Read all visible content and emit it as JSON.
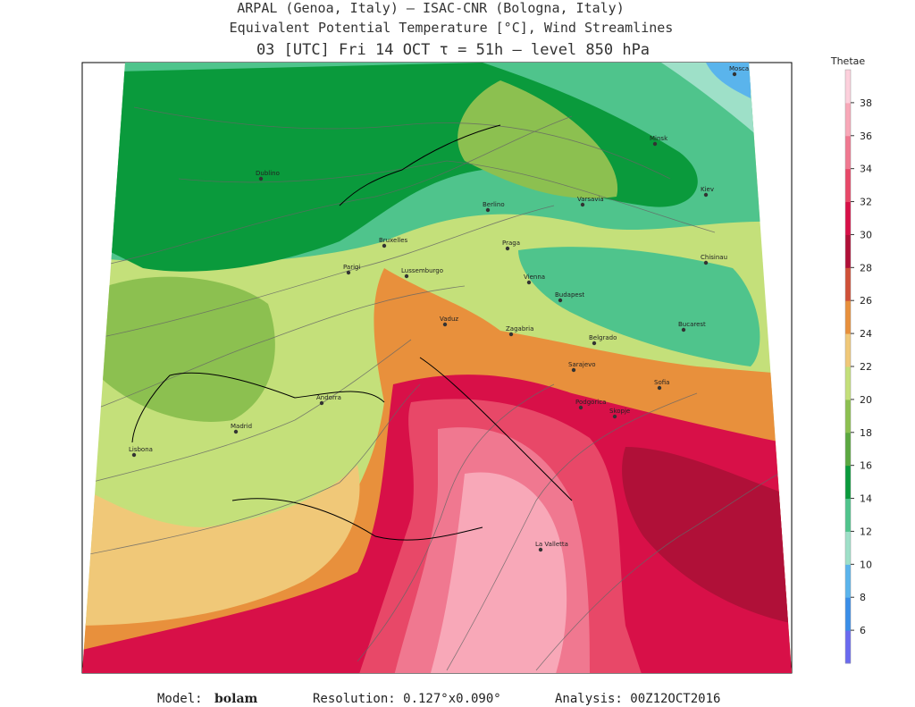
{
  "header": {
    "line1": "ARPAL (Genoa, Italy)  –  ISAC-CNR (Bologna, Italy)",
    "line2": "Equivalent Potential Temperature [°C], Wind Streamlines",
    "line3": "03 [UTC] Fri 14 OCT  τ = 51h  –  level 850 hPa"
  },
  "colorbar": {
    "title": "Thetae",
    "range": [
      4,
      40
    ],
    "ticks": [
      6,
      8,
      10,
      12,
      14,
      16,
      18,
      20,
      22,
      24,
      26,
      28,
      30,
      32,
      34,
      36,
      38
    ],
    "colors": [
      "#6a6af0",
      "#3a8ee8",
      "#5ab4ec",
      "#9ee0c8",
      "#4fc48c",
      "#0a9a3c",
      "#5aa840",
      "#8cc050",
      "#c4e07a",
      "#f0c878",
      "#e8903c",
      "#d05038",
      "#b01038",
      "#d81048",
      "#e84868",
      "#f07890",
      "#f8a8b8",
      "#fcd0dc"
    ]
  },
  "cities": [
    "Mosca",
    "Minsk",
    "Dublino",
    "Berlino",
    "Varsavia",
    "Kiev",
    "Bruxelles",
    "Praga",
    "Parigi",
    "Lussemburgo",
    "Vienna",
    "Budapest",
    "Chisinau",
    "Vaduz",
    "Zagabria",
    "Belgrado",
    "Bucarest",
    "Sarajevo",
    "Sofia",
    "Andorra",
    "Madrid",
    "Lisbona",
    "La Valletta",
    "Podgorica",
    "Skopje"
  ],
  "footer": {
    "model_label": "Model:",
    "model": "bolam",
    "resolution": "Resolution: 0.127°x0.090°",
    "analysis": "Analysis: 00Z12OCT2016"
  }
}
